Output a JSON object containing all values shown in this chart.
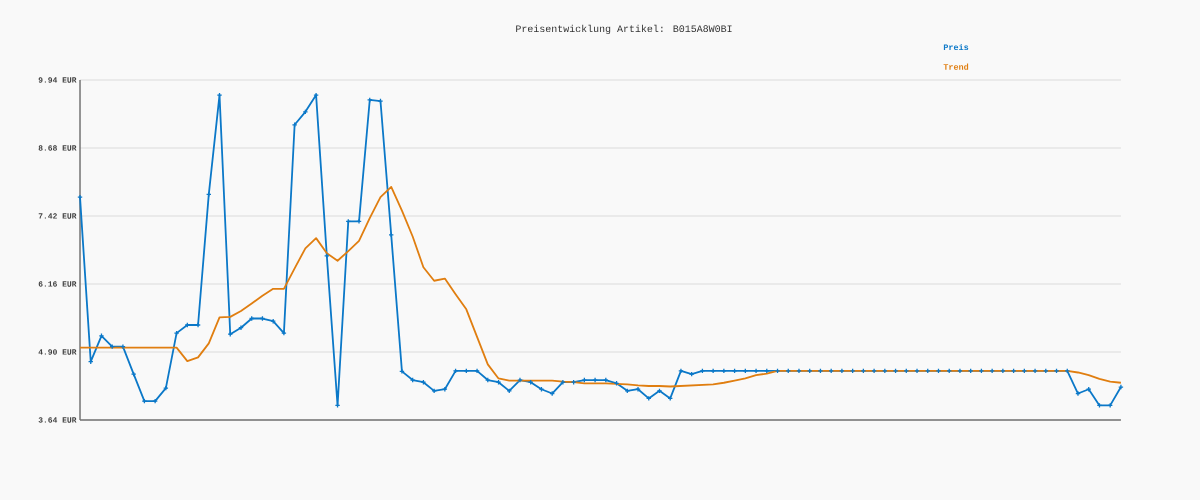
{
  "chart_data": {
    "type": "line",
    "title": "Preisentwicklung Artikel: B015A8W0BI",
    "categories": [
      null,
      null,
      null,
      null,
      null,
      null,
      null,
      null,
      null,
      null,
      null,
      null,
      null,
      null,
      null,
      null,
      null,
      null,
      null,
      null,
      null,
      null,
      null,
      null,
      null,
      null,
      null,
      null,
      null,
      null,
      null,
      null,
      null,
      null,
      null,
      null,
      null,
      null,
      null,
      null,
      null,
      null,
      null,
      null,
      null,
      null,
      null,
      null,
      null,
      null,
      null,
      null,
      null,
      null,
      null,
      null,
      null,
      null,
      null,
      null,
      null,
      null,
      null,
      null,
      null,
      null,
      null,
      null,
      null,
      null,
      null,
      null,
      null,
      null,
      null,
      null,
      null,
      null,
      null,
      null,
      null,
      null,
      null,
      null,
      null,
      null,
      null,
      null,
      null,
      null,
      null,
      null,
      null,
      null,
      null,
      null,
      null,
      null
    ],
    "series": [
      {
        "name": "Preis",
        "color": "#0b78c8",
        "marker": "cross",
        "values": [
          7.77,
          4.72,
          5.2,
          5.0,
          5.0,
          4.49,
          3.99,
          3.99,
          4.23,
          5.25,
          5.4,
          5.4,
          7.82,
          9.66,
          5.23,
          5.35,
          5.52,
          5.52,
          5.47,
          5.25,
          9.11,
          9.35,
          9.66,
          6.68,
          3.91,
          7.32,
          7.32,
          9.57,
          9.55,
          7.07,
          4.54,
          4.38,
          4.34,
          4.18,
          4.21,
          4.55,
          4.55,
          4.55,
          4.38,
          4.34,
          4.18,
          4.38,
          4.34,
          4.21,
          4.13,
          4.34,
          4.34,
          4.38,
          4.38,
          4.38,
          4.32,
          4.18,
          4.21,
          4.04,
          4.18,
          4.04,
          4.55,
          4.49,
          4.55,
          4.55,
          4.55,
          4.55,
          4.55,
          4.55,
          4.55,
          4.55,
          4.55,
          4.55,
          4.55,
          4.55,
          4.55,
          4.55,
          4.55,
          4.55,
          4.55,
          4.55,
          4.55,
          4.55,
          4.55,
          4.55,
          4.55,
          4.55,
          4.55,
          4.55,
          4.55,
          4.55,
          4.55,
          4.55,
          4.55,
          4.55,
          4.55,
          4.55,
          4.55,
          4.13,
          4.21,
          3.91,
          3.91,
          4.25
        ]
      },
      {
        "name": "Trend",
        "color": "#e07e10",
        "marker": "none",
        "values": [
          4.98,
          4.98,
          4.98,
          4.98,
          4.98,
          4.98,
          4.98,
          4.98,
          4.98,
          4.98,
          4.73,
          4.8,
          5.06,
          5.54,
          5.55,
          5.66,
          5.8,
          5.94,
          6.07,
          6.07,
          6.45,
          6.82,
          7.01,
          6.73,
          6.59,
          6.77,
          6.96,
          7.38,
          7.77,
          7.96,
          7.52,
          7.04,
          6.47,
          6.22,
          6.26,
          5.97,
          5.69,
          5.18,
          4.67,
          4.41,
          4.37,
          4.37,
          4.37,
          4.37,
          4.37,
          4.35,
          4.34,
          4.32,
          4.32,
          4.32,
          4.31,
          4.3,
          4.28,
          4.27,
          4.27,
          4.26,
          4.27,
          4.28,
          4.29,
          4.3,
          4.33,
          4.37,
          4.41,
          4.47,
          4.5,
          4.55,
          4.55,
          4.55,
          4.55,
          4.55,
          4.55,
          4.55,
          4.55,
          4.55,
          4.55,
          4.55,
          4.55,
          4.55,
          4.55,
          4.55,
          4.55,
          4.55,
          4.55,
          4.55,
          4.55,
          4.55,
          4.55,
          4.55,
          4.55,
          4.55,
          4.55,
          4.55,
          4.55,
          4.52,
          4.47,
          4.4,
          4.35,
          4.33
        ]
      }
    ],
    "ylim": [
      3.64,
      9.94
    ],
    "yticks": [
      {
        "value": 3.64,
        "label": "3.64 EUR"
      },
      {
        "value": 4.9,
        "label": "4.90 EUR"
      },
      {
        "value": 6.16,
        "label": "6.16 EUR"
      },
      {
        "value": 7.42,
        "label": "7.42 EUR"
      },
      {
        "value": 8.68,
        "label": "8.68 EUR"
      },
      {
        "value": 9.94,
        "label": "9.94 EUR"
      }
    ],
    "grid": "y",
    "legend": "top right",
    "tick_labels": "y",
    "line_style": "solid"
  }
}
